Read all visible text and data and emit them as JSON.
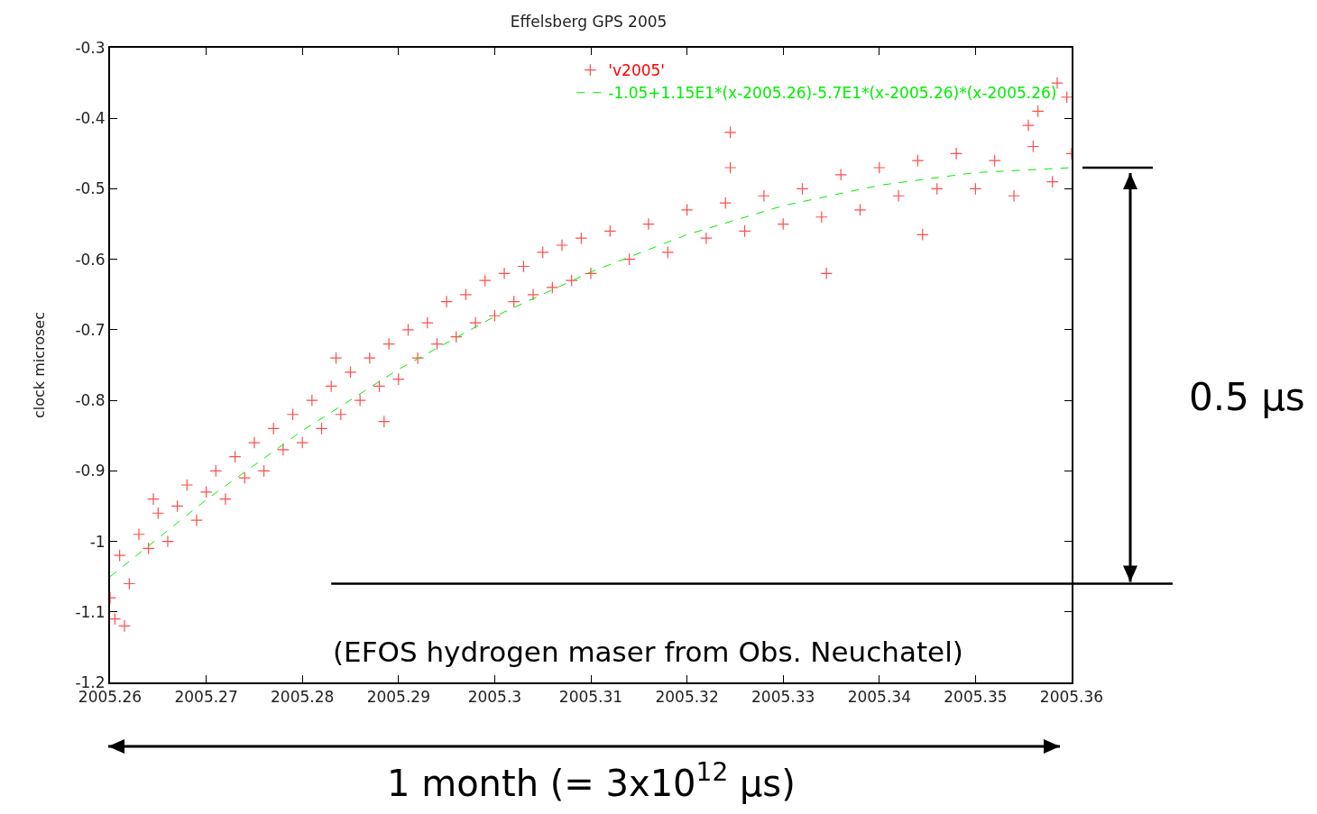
{
  "chart_data": {
    "type": "scatter",
    "title": "Effelsberg GPS 2005",
    "ylabel": "clock microsec",
    "xlim": [
      2005.26,
      2005.36
    ],
    "xticks": [
      2005.26,
      2005.27,
      2005.28,
      2005.29,
      2005.3,
      2005.31,
      2005.32,
      2005.33,
      2005.34,
      2005.35,
      2005.36
    ],
    "ylim": [
      -1.2,
      -0.3
    ],
    "yticks": [
      -1.2,
      -1.1,
      -1,
      -0.9,
      -0.8,
      -0.7,
      -0.6,
      -0.5,
      -0.4,
      -0.3
    ],
    "grid": false,
    "legend": "top right",
    "series": [
      {
        "name": "'v2005'",
        "marker": "cross",
        "color": "#ff0000",
        "x": [
          2005.26,
          2005.261,
          2005.262,
          2005.263,
          2005.264,
          2005.265,
          2005.266,
          2005.267,
          2005.268,
          2005.269,
          2005.27,
          2005.271,
          2005.272,
          2005.273,
          2005.274,
          2005.275,
          2005.276,
          2005.277,
          2005.278,
          2005.279,
          2005.28,
          2005.281,
          2005.282,
          2005.283,
          2005.284,
          2005.285,
          2005.286,
          2005.287,
          2005.288,
          2005.289,
          2005.29,
          2005.291,
          2005.292,
          2005.293,
          2005.294,
          2005.295,
          2005.296,
          2005.297,
          2005.298,
          2005.299,
          2005.3,
          2005.301,
          2005.302,
          2005.303,
          2005.304,
          2005.305,
          2005.306,
          2005.307,
          2005.308,
          2005.309,
          2005.31,
          2005.312,
          2005.314,
          2005.316,
          2005.318,
          2005.32,
          2005.322,
          2005.324,
          2005.326,
          2005.328,
          2005.33,
          2005.332,
          2005.334,
          2005.336,
          2005.338,
          2005.34,
          2005.342,
          2005.344,
          2005.346,
          2005.348,
          2005.35,
          2005.352,
          2005.354,
          2005.356,
          2005.358,
          2005.36,
          2005.2605,
          2005.2615,
          2005.2645,
          2005.2835,
          2005.2885,
          2005.3245,
          2005.3245,
          2005.3345,
          2005.3445,
          2005.3565,
          2005.3585,
          2005.3595,
          2005.3555
        ],
        "values": [
          -1.08,
          -1.02,
          -1.06,
          -0.99,
          -1.01,
          -0.96,
          -1.0,
          -0.95,
          -0.92,
          -0.97,
          -0.93,
          -0.9,
          -0.94,
          -0.88,
          -0.91,
          -0.86,
          -0.9,
          -0.84,
          -0.87,
          -0.82,
          -0.86,
          -0.8,
          -0.84,
          -0.78,
          -0.82,
          -0.76,
          -0.8,
          -0.74,
          -0.78,
          -0.72,
          -0.77,
          -0.7,
          -0.74,
          -0.69,
          -0.72,
          -0.66,
          -0.71,
          -0.65,
          -0.69,
          -0.63,
          -0.68,
          -0.62,
          -0.66,
          -0.61,
          -0.65,
          -0.59,
          -0.64,
          -0.58,
          -0.63,
          -0.57,
          -0.62,
          -0.56,
          -0.6,
          -0.55,
          -0.59,
          -0.53,
          -0.57,
          -0.52,
          -0.56,
          -0.51,
          -0.55,
          -0.5,
          -0.54,
          -0.48,
          -0.53,
          -0.47,
          -0.51,
          -0.46,
          -0.5,
          -0.45,
          -0.5,
          -0.46,
          -0.51,
          -0.44,
          -0.49,
          -0.45,
          -1.11,
          -1.12,
          -0.94,
          -0.74,
          -0.83,
          -0.42,
          -0.47,
          -0.62,
          -0.565,
          -0.39,
          -0.35,
          -0.37,
          -0.41
        ]
      },
      {
        "name": "-1.05+1.15E1*(x-2005.26)-5.7E1*(x-2005.26)*(x-2005.26)",
        "type": "line",
        "line_style": "dashed",
        "marker": "none",
        "color": "#00ee00",
        "x": [
          2005.26,
          2005.27,
          2005.28,
          2005.29,
          2005.3,
          2005.31,
          2005.32,
          2005.33,
          2005.34,
          2005.35,
          2005.36
        ],
        "values": [
          -1.05,
          -0.941,
          -0.843,
          -0.756,
          -0.681,
          -0.618,
          -0.565,
          -0.524,
          -0.495,
          -0.477,
          -0.47
        ]
      }
    ],
    "ref_lines": [
      {
        "axis": "y",
        "value": -1.06,
        "color": "#000000"
      }
    ],
    "annotations": [
      "(EFOS hydrogen maser from Obs. Neuchatel)",
      "0.5 μs",
      "1 month (= 3x10$^{12}$ μs)"
    ]
  }
}
